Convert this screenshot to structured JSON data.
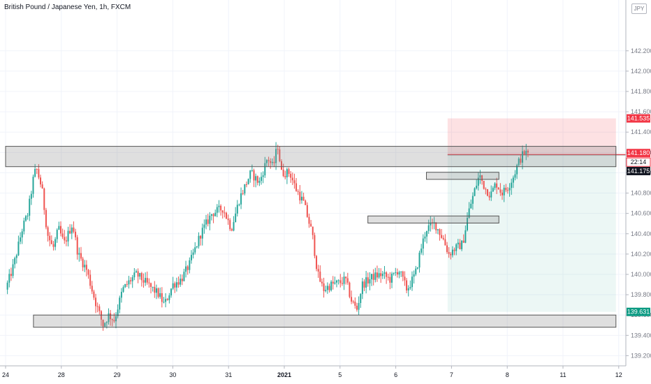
{
  "header": {
    "title": "British Pound / Japanese Yen, 1h, FXCM",
    "currency": "JPY"
  },
  "chart_data": {
    "type": "candlestick",
    "symbol": "GBPJPY",
    "timeframe": "1h",
    "ylim": [
      139.1,
      142.7
    ],
    "y_ticks": [
      "139.200",
      "139.400",
      "139.600",
      "139.800",
      "140.000",
      "140.200",
      "140.400",
      "140.600",
      "140.800",
      "141.000",
      "141.200",
      "141.400",
      "141.600",
      "141.800",
      "142.000",
      "142.200"
    ],
    "x_ticks": [
      {
        "label": "24",
        "bold": false
      },
      {
        "label": "28",
        "bold": false
      },
      {
        "label": "29",
        "bold": false
      },
      {
        "label": "30",
        "bold": false
      },
      {
        "label": "31",
        "bold": false
      },
      {
        "label": "2021",
        "bold": true
      },
      {
        "label": "5",
        "bold": false
      },
      {
        "label": "6",
        "bold": false
      },
      {
        "label": "7",
        "bold": false
      },
      {
        "label": "8",
        "bold": false
      },
      {
        "label": "11",
        "bold": false
      },
      {
        "label": "12",
        "bold": false
      }
    ],
    "x_domain": [
      -0.05,
      10.95
    ],
    "price_labels": [
      {
        "value": "141.535",
        "color": "#f23645",
        "kind": "stop"
      },
      {
        "value": "141.180",
        "color": "#f23645",
        "kind": "last"
      },
      {
        "value": "22:14",
        "color": "#ffffff",
        "kind": "countdown"
      },
      {
        "value": "141.175",
        "color": "#131722",
        "kind": "entry"
      },
      {
        "value": "139.631",
        "color": "#089981",
        "kind": "target"
      }
    ],
    "zones": [
      {
        "x": [
          -0.05,
          10.95
        ],
        "y": [
          141.06,
          141.26
        ]
      },
      {
        "x": [
          7.55,
          8.85
        ],
        "y": [
          140.935,
          141.005
        ]
      },
      {
        "x": [
          6.5,
          8.85
        ],
        "y": [
          140.505,
          140.575
        ]
      },
      {
        "x": [
          0.5,
          10.95
        ],
        "y": [
          139.48,
          139.6
        ]
      }
    ],
    "position": {
      "x": [
        7.93,
        10.95
      ],
      "entry": 141.175,
      "stop": 141.535,
      "target": 139.631
    },
    "swing_points": [
      [
        0.0,
        139.85
      ],
      [
        0.15,
        140.1
      ],
      [
        0.3,
        140.45
      ],
      [
        0.4,
        140.6
      ],
      [
        0.5,
        140.95
      ],
      [
        0.55,
        141.05
      ],
      [
        0.65,
        140.85
      ],
      [
        0.75,
        140.4
      ],
      [
        0.85,
        140.25
      ],
      [
        0.95,
        140.45
      ],
      [
        1.05,
        140.3
      ],
      [
        1.2,
        140.5
      ],
      [
        1.3,
        140.2
      ],
      [
        1.45,
        140.05
      ],
      [
        1.6,
        139.75
      ],
      [
        1.75,
        139.5
      ],
      [
        1.85,
        139.6
      ],
      [
        1.95,
        139.55
      ],
      [
        2.1,
        139.85
      ],
      [
        2.25,
        139.95
      ],
      [
        2.35,
        140.0
      ],
      [
        2.55,
        139.9
      ],
      [
        2.75,
        139.8
      ],
      [
        2.85,
        139.7
      ],
      [
        3.0,
        139.9
      ],
      [
        3.15,
        139.95
      ],
      [
        3.3,
        140.1
      ],
      [
        3.5,
        140.4
      ],
      [
        3.7,
        140.6
      ],
      [
        3.9,
        140.65
      ],
      [
        4.05,
        140.45
      ],
      [
        4.2,
        140.75
      ],
      [
        4.4,
        141.0
      ],
      [
        4.55,
        140.9
      ],
      [
        4.7,
        141.15
      ],
      [
        4.8,
        141.05
      ],
      [
        4.88,
        141.28
      ],
      [
        4.95,
        141.0
      ],
      [
        5.1,
        141.0
      ],
      [
        5.2,
        140.85
      ],
      [
        5.35,
        140.7
      ],
      [
        5.5,
        140.4
      ],
      [
        5.6,
        140.0
      ],
      [
        5.7,
        139.85
      ],
      [
        5.85,
        139.9
      ],
      [
        6.0,
        139.92
      ],
      [
        6.1,
        139.95
      ],
      [
        6.2,
        139.75
      ],
      [
        6.3,
        139.65
      ],
      [
        6.4,
        139.9
      ],
      [
        6.6,
        139.98
      ],
      [
        6.75,
        140.0
      ],
      [
        6.9,
        139.95
      ],
      [
        7.05,
        140.05
      ],
      [
        7.2,
        139.85
      ],
      [
        7.35,
        140.0
      ],
      [
        7.45,
        140.25
      ],
      [
        7.55,
        140.45
      ],
      [
        7.7,
        140.5
      ],
      [
        7.85,
        140.35
      ],
      [
        7.95,
        140.2
      ],
      [
        8.05,
        140.25
      ],
      [
        8.2,
        140.3
      ],
      [
        8.3,
        140.6
      ],
      [
        8.4,
        140.8
      ],
      [
        8.5,
        140.98
      ],
      [
        8.6,
        140.85
      ],
      [
        8.7,
        140.78
      ],
      [
        8.8,
        140.9
      ],
      [
        8.9,
        140.8
      ],
      [
        9.0,
        140.85
      ],
      [
        9.1,
        140.95
      ],
      [
        9.2,
        141.1
      ],
      [
        9.3,
        141.2
      ],
      [
        9.4,
        141.18
      ]
    ]
  }
}
